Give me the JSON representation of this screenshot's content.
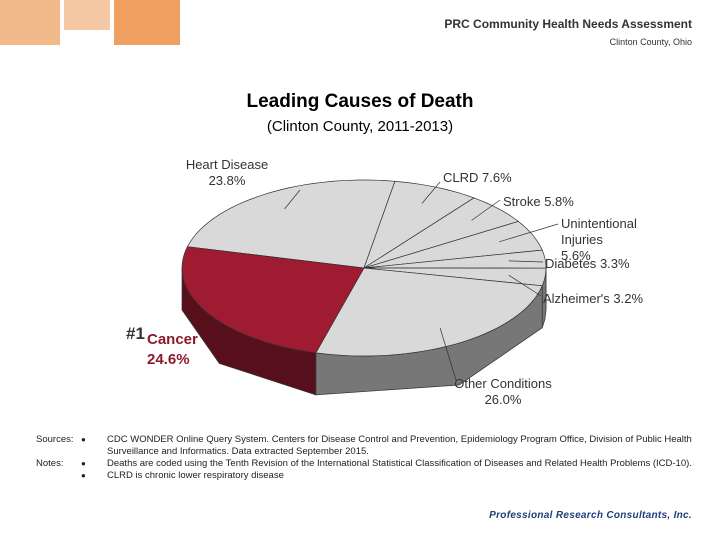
{
  "header": {
    "title": "PRC Community Health Needs Assessment",
    "subtitle": "Clinton County, Ohio"
  },
  "chart_data": {
    "type": "pie3d",
    "title": "Leading Causes of Death",
    "subtitle": "(Clinton County, 2011-2013)",
    "categories": [
      "Heart Disease",
      "CLRD",
      "Stroke",
      "Unintentional Injuries",
      "Diabetes",
      "Alzheimer's",
      "Other Conditions",
      "Cancer"
    ],
    "values": [
      23.8,
      7.6,
      5.8,
      5.6,
      3.3,
      3.2,
      26.0,
      24.6
    ],
    "value_labels": [
      "23.8%",
      "7.6%",
      "5.8%",
      "5.6%",
      "3.3%",
      "3.2%",
      "26.0%",
      "24.6%"
    ],
    "colors": [
      "#d9d9d9",
      "#d9d9d9",
      "#d9d9d9",
      "#d9d9d9",
      "#d9d9d9",
      "#d9d9d9",
      "#d9d9d9",
      "#9e1b32"
    ],
    "annotation": "#1"
  },
  "footnotes": {
    "sources_label": "Sources:",
    "sources": [
      "CDC WONDER Online Query System. Centers for Disease Control and Prevention, Epidemiology Program Office, Division of Public Health Surveillance and Informatics. Data extracted September 2015."
    ],
    "notes_label": "Notes:",
    "notes": [
      "Deaths are coded using the Tenth Revision of the International Statistical Classification of Diseases and Related Health Problems (ICD-10).",
      "CLRD is chronic lower respiratory disease"
    ]
  },
  "logo": "Professional Research Consultants, Inc."
}
